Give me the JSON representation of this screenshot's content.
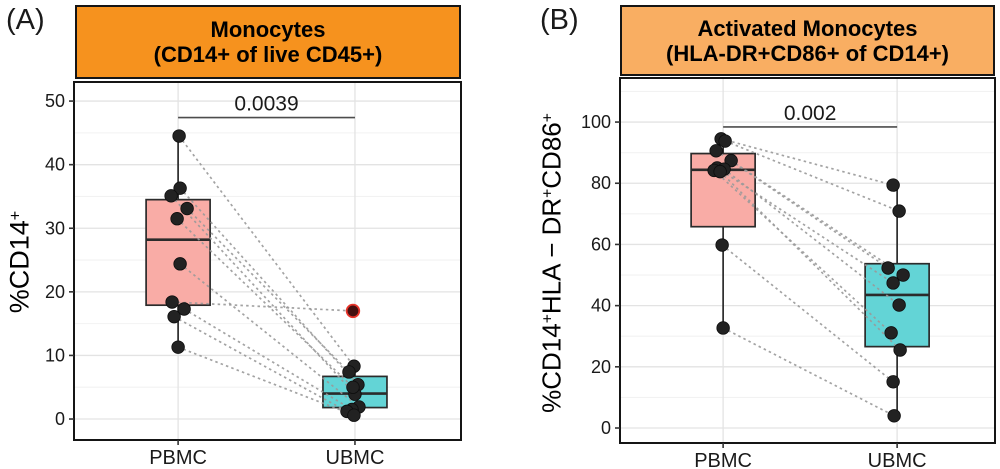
{
  "figure": {
    "background": "#FFFFFF",
    "panel_labels": {
      "a": "(A)",
      "b": "(B)"
    }
  },
  "colors": {
    "point": "#222222",
    "point_stroke": "#0d0d0d",
    "outlier_fill": "#451010",
    "outlier_stroke": "#E8342A",
    "grid_major": "#E3E3E3",
    "grid_minor": "#F2F2F2",
    "box_stroke": "#2B2B2B",
    "pair_line": "#9A9A9A",
    "bracket": "#4D4D4D",
    "panel_border": "#151515",
    "tick": "#333333"
  },
  "chart_data": [
    {
      "id": "A",
      "type": "box",
      "panel_label": "(A)",
      "title_lines": [
        "Monocytes",
        "(CD14+ of live CD45+)"
      ],
      "header_fill": "#F6921E",
      "ylabel": "%CD14+",
      "ylabel_parts": [
        {
          "text": "%CD14"
        },
        {
          "text": "+",
          "sup": true
        }
      ],
      "categories": [
        "PBMC",
        "UBMC"
      ],
      "ylim": [
        -3.3,
        53.0
      ],
      "yticks": [
        0,
        10,
        20,
        30,
        40,
        50
      ],
      "yminor": [
        5,
        15,
        25,
        35,
        45
      ],
      "pvalue": "0.0039",
      "bracket_y": 47.4,
      "boxes": [
        {
          "category": "PBMC",
          "fill": "#F9ACA6",
          "q1": 17.9,
          "median": 28.2,
          "q3": 34.5,
          "whisker_low": 11.3,
          "whisker_high": 44.5
        },
        {
          "category": "UBMC",
          "fill": "#63D4D6",
          "q1": 1.8,
          "median": 4.0,
          "q3": 6.7,
          "whisker_low": 0.6,
          "whisker_high": 8.3
        }
      ],
      "pairs": [
        {
          "pbmc": 44.5,
          "ubmc": 8.3,
          "pj": 1,
          "uj": -1
        },
        {
          "pbmc": 36.3,
          "ubmc": 5.4,
          "pj": 2,
          "uj": 3
        },
        {
          "pbmc": 35.1,
          "ubmc": 3.9,
          "pj": -7,
          "uj": 0
        },
        {
          "pbmc": 33.1,
          "ubmc": 7.4,
          "pj": 9,
          "uj": -6
        },
        {
          "pbmc": 31.5,
          "ubmc": 5.0,
          "pj": -1,
          "uj": -2
        },
        {
          "pbmc": 24.4,
          "ubmc": 1.9,
          "pj": 2,
          "uj": 4
        },
        {
          "pbmc": 18.4,
          "ubmc": 17.0,
          "pj": -6,
          "uj": -2,
          "ubmc_outlier": true
        },
        {
          "pbmc": 17.3,
          "ubmc": 1.5,
          "pj": 6,
          "uj": -3
        },
        {
          "pbmc": 16.1,
          "ubmc": 1.2,
          "pj": -4,
          "uj": -8
        },
        {
          "pbmc": 11.3,
          "ubmc": 0.6,
          "pj": 0,
          "uj": -1
        }
      ]
    },
    {
      "id": "B",
      "type": "box",
      "panel_label": "(B)",
      "title_lines": [
        "Activated Monocytes",
        "(HLA-DR+CD86+ of CD14+)"
      ],
      "header_fill": "#F9AE62",
      "ylabel": "%CD14+HLA − DR+CD86+",
      "ylabel_parts": [
        {
          "text": "%CD14"
        },
        {
          "text": "+",
          "sup": true
        },
        {
          "text": "HLA − DR"
        },
        {
          "text": "+",
          "sup": true
        },
        {
          "text": "CD86"
        },
        {
          "text": "+",
          "sup": true
        }
      ],
      "categories": [
        "PBMC",
        "UBMC"
      ],
      "ylim": [
        -4.9,
        114.4
      ],
      "yticks": [
        0,
        20,
        40,
        60,
        80,
        100
      ],
      "yminor": [
        10,
        30,
        50,
        70,
        90,
        110
      ],
      "pvalue": "0.002",
      "bracket_y": 98.4,
      "boxes": [
        {
          "category": "PBMC",
          "fill": "#F9ACA6",
          "q1": 65.8,
          "median": 84.4,
          "q3": 89.7,
          "whisker_low": 32.7,
          "whisker_high": 94.5
        },
        {
          "category": "UBMC",
          "fill": "#63D4D6",
          "q1": 26.6,
          "median": 43.5,
          "q3": 53.7,
          "whisker_low": 4.0,
          "whisker_high": 79.4
        }
      ],
      "pairs": [
        {
          "pbmc": 94.5,
          "ubmc": 79.4,
          "pj": -2,
          "uj": -4
        },
        {
          "pbmc": 93.8,
          "ubmc": 70.9,
          "pj": 2,
          "uj": 2
        },
        {
          "pbmc": 90.6,
          "ubmc": 52.3,
          "pj": -7,
          "uj": -9
        },
        {
          "pbmc": 87.4,
          "ubmc": 50.0,
          "pj": 8,
          "uj": 6
        },
        {
          "pbmc": 85.0,
          "ubmc": 47.4,
          "pj": -6,
          "uj": -4
        },
        {
          "pbmc": 84.6,
          "ubmc": 40.2,
          "pj": 1,
          "uj": 2
        },
        {
          "pbmc": 84.2,
          "ubmc": 31.1,
          "pj": -9,
          "uj": -6
        },
        {
          "pbmc": 83.8,
          "ubmc": 25.5,
          "pj": -3,
          "uj": 3
        },
        {
          "pbmc": 59.8,
          "ubmc": 15.1,
          "pj": -1,
          "uj": -4
        },
        {
          "pbmc": 32.7,
          "ubmc": 4.0,
          "pj": 0,
          "uj": -3
        }
      ]
    }
  ]
}
